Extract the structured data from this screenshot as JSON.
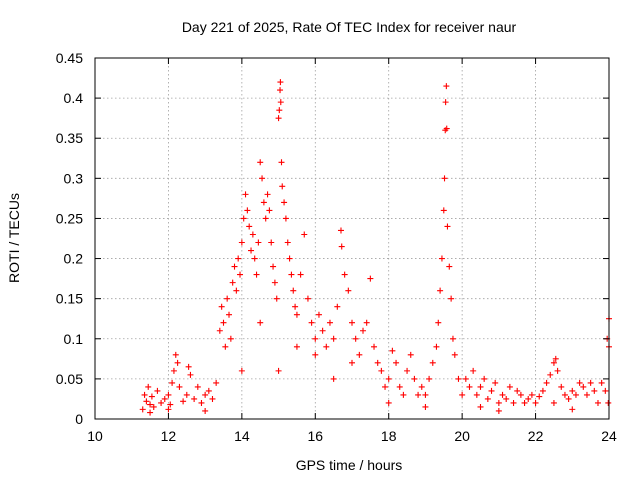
{
  "chart_data": {
    "type": "scatter",
    "title": "Day 221 of 2025, Rate Of TEC Index for receiver naur",
    "xlabel": "GPS time / hours",
    "ylabel": "ROTI / TECUs",
    "xlim": [
      10,
      24
    ],
    "ylim": [
      0,
      0.45
    ],
    "x_ticks": [
      10,
      12,
      14,
      16,
      18,
      20,
      22,
      24
    ],
    "y_ticks": [
      0,
      0.05,
      0.1,
      0.15,
      0.2,
      0.25,
      0.3,
      0.35,
      0.4,
      0.45
    ],
    "x_tick_labels": [
      "10",
      "12",
      "14",
      "16",
      "18",
      "20",
      "22",
      "24"
    ],
    "y_tick_labels": [
      "0",
      "0.05",
      "0.1",
      "0.15",
      "0.2",
      "0.25",
      "0.3",
      "0.35",
      "0.4",
      "0.45"
    ],
    "grid": true,
    "marker": "+",
    "marker_color": "#ff0000",
    "series": [
      {
        "name": "ROTI",
        "points": [
          [
            11.3,
            0.012
          ],
          [
            11.35,
            0.03
          ],
          [
            11.4,
            0.022
          ],
          [
            11.45,
            0.04
          ],
          [
            11.5,
            0.018
          ],
          [
            11.55,
            0.028
          ],
          [
            11.6,
            0.015
          ],
          [
            11.7,
            0.035
          ],
          [
            11.8,
            0.02
          ],
          [
            11.9,
            0.025
          ],
          [
            12.0,
            0.03
          ],
          [
            12.05,
            0.018
          ],
          [
            12.1,
            0.045
          ],
          [
            12.15,
            0.06
          ],
          [
            12.2,
            0.08
          ],
          [
            12.25,
            0.07
          ],
          [
            12.3,
            0.04
          ],
          [
            12.4,
            0.022
          ],
          [
            12.5,
            0.03
          ],
          [
            12.55,
            0.065
          ],
          [
            12.6,
            0.055
          ],
          [
            12.7,
            0.025
          ],
          [
            12.8,
            0.04
          ],
          [
            12.9,
            0.02
          ],
          [
            13.0,
            0.03
          ],
          [
            13.1,
            0.035
          ],
          [
            13.2,
            0.025
          ],
          [
            13.3,
            0.045
          ],
          [
            13.4,
            0.11
          ],
          [
            13.45,
            0.14
          ],
          [
            13.5,
            0.12
          ],
          [
            13.55,
            0.09
          ],
          [
            13.6,
            0.15
          ],
          [
            13.65,
            0.13
          ],
          [
            13.7,
            0.1
          ],
          [
            13.75,
            0.17
          ],
          [
            13.8,
            0.19
          ],
          [
            13.85,
            0.16
          ],
          [
            13.9,
            0.2
          ],
          [
            13.95,
            0.18
          ],
          [
            14.0,
            0.22
          ],
          [
            14.05,
            0.25
          ],
          [
            14.1,
            0.28
          ],
          [
            14.15,
            0.26
          ],
          [
            14.2,
            0.24
          ],
          [
            14.25,
            0.21
          ],
          [
            14.3,
            0.23
          ],
          [
            14.35,
            0.2
          ],
          [
            14.4,
            0.18
          ],
          [
            14.45,
            0.22
          ],
          [
            14.5,
            0.32
          ],
          [
            14.55,
            0.3
          ],
          [
            14.6,
            0.27
          ],
          [
            14.65,
            0.25
          ],
          [
            14.7,
            0.28
          ],
          [
            14.75,
            0.26
          ],
          [
            14.8,
            0.22
          ],
          [
            14.85,
            0.19
          ],
          [
            14.9,
            0.17
          ],
          [
            14.95,
            0.15
          ],
          [
            15.0,
            0.375
          ],
          [
            15.02,
            0.385
          ],
          [
            15.04,
            0.41
          ],
          [
            15.05,
            0.42
          ],
          [
            15.06,
            0.395
          ],
          [
            15.08,
            0.32
          ],
          [
            15.1,
            0.29
          ],
          [
            15.15,
            0.27
          ],
          [
            15.2,
            0.25
          ],
          [
            15.25,
            0.22
          ],
          [
            15.3,
            0.2
          ],
          [
            15.35,
            0.18
          ],
          [
            15.4,
            0.16
          ],
          [
            15.45,
            0.14
          ],
          [
            15.5,
            0.13
          ],
          [
            15.6,
            0.18
          ],
          [
            15.7,
            0.23
          ],
          [
            15.8,
            0.15
          ],
          [
            15.9,
            0.12
          ],
          [
            16.0,
            0.1
          ],
          [
            16.1,
            0.13
          ],
          [
            16.2,
            0.11
          ],
          [
            16.3,
            0.09
          ],
          [
            16.4,
            0.12
          ],
          [
            16.5,
            0.1
          ],
          [
            16.6,
            0.14
          ],
          [
            16.7,
            0.235
          ],
          [
            16.72,
            0.215
          ],
          [
            16.8,
            0.18
          ],
          [
            16.9,
            0.16
          ],
          [
            17.0,
            0.12
          ],
          [
            17.1,
            0.1
          ],
          [
            17.2,
            0.08
          ],
          [
            17.3,
            0.11
          ],
          [
            17.4,
            0.12
          ],
          [
            17.5,
            0.175
          ],
          [
            17.6,
            0.09
          ],
          [
            17.7,
            0.07
          ],
          [
            17.8,
            0.06
          ],
          [
            17.9,
            0.04
          ],
          [
            18.0,
            0.05
          ],
          [
            18.1,
            0.085
          ],
          [
            18.2,
            0.07
          ],
          [
            18.3,
            0.04
          ],
          [
            18.4,
            0.03
          ],
          [
            18.5,
            0.06
          ],
          [
            18.6,
            0.08
          ],
          [
            18.7,
            0.05
          ],
          [
            18.8,
            0.03
          ],
          [
            18.9,
            0.04
          ],
          [
            19.0,
            0.03
          ],
          [
            19.1,
            0.05
          ],
          [
            19.2,
            0.07
          ],
          [
            19.3,
            0.09
          ],
          [
            19.35,
            0.12
          ],
          [
            19.4,
            0.16
          ],
          [
            19.45,
            0.2
          ],
          [
            19.5,
            0.26
          ],
          [
            19.52,
            0.3
          ],
          [
            19.54,
            0.36
          ],
          [
            19.55,
            0.395
          ],
          [
            19.57,
            0.415
          ],
          [
            19.58,
            0.362
          ],
          [
            19.6,
            0.24
          ],
          [
            19.65,
            0.19
          ],
          [
            19.7,
            0.15
          ],
          [
            19.75,
            0.1
          ],
          [
            19.8,
            0.08
          ],
          [
            19.9,
            0.05
          ],
          [
            20.0,
            0.03
          ],
          [
            20.1,
            0.05
          ],
          [
            20.2,
            0.04
          ],
          [
            20.3,
            0.06
          ],
          [
            20.4,
            0.03
          ],
          [
            20.5,
            0.04
          ],
          [
            20.6,
            0.05
          ],
          [
            20.7,
            0.025
          ],
          [
            20.8,
            0.035
          ],
          [
            20.9,
            0.045
          ],
          [
            21.0,
            0.02
          ],
          [
            21.1,
            0.03
          ],
          [
            21.2,
            0.025
          ],
          [
            21.3,
            0.04
          ],
          [
            21.4,
            0.02
          ],
          [
            21.5,
            0.035
          ],
          [
            21.6,
            0.03
          ],
          [
            21.7,
            0.02
          ],
          [
            21.8,
            0.025
          ],
          [
            21.9,
            0.03
          ],
          [
            22.0,
            0.02
          ],
          [
            22.1,
            0.028
          ],
          [
            22.2,
            0.035
          ],
          [
            22.3,
            0.045
          ],
          [
            22.4,
            0.055
          ],
          [
            22.5,
            0.07
          ],
          [
            22.55,
            0.075
          ],
          [
            22.6,
            0.06
          ],
          [
            22.7,
            0.04
          ],
          [
            22.8,
            0.03
          ],
          [
            22.9,
            0.025
          ],
          [
            23.0,
            0.035
          ],
          [
            23.1,
            0.03
          ],
          [
            23.2,
            0.045
          ],
          [
            23.3,
            0.04
          ],
          [
            23.4,
            0.03
          ],
          [
            23.5,
            0.045
          ],
          [
            23.6,
            0.035
          ],
          [
            23.7,
            0.02
          ],
          [
            23.8,
            0.045
          ],
          [
            23.9,
            0.035
          ],
          [
            23.95,
            0.1
          ],
          [
            24.0,
            0.125
          ],
          [
            24.0,
            0.09
          ],
          [
            23.98,
            0.02
          ],
          [
            11.5,
            0.008
          ],
          [
            13.0,
            0.01
          ],
          [
            15.0,
            0.06
          ],
          [
            16.0,
            0.08
          ],
          [
            17.0,
            0.07
          ],
          [
            18.0,
            0.02
          ],
          [
            14.0,
            0.06
          ],
          [
            14.5,
            0.12
          ],
          [
            15.5,
            0.09
          ],
          [
            16.5,
            0.05
          ],
          [
            12.0,
            0.012
          ],
          [
            20.5,
            0.015
          ],
          [
            22.5,
            0.02
          ],
          [
            19.0,
            0.015
          ],
          [
            21.0,
            0.01
          ],
          [
            23.0,
            0.012
          ]
        ]
      }
    ]
  }
}
